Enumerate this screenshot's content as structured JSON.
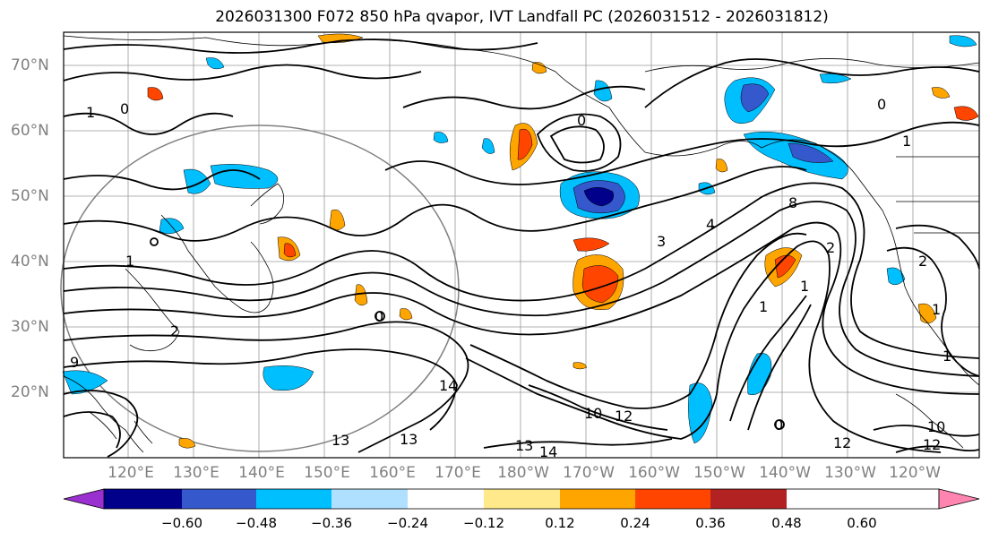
{
  "title": "2026031300 F072 850 hPa qvapor, IVT Landfall PC (2026031512 - 2026031812)",
  "lon_labels": [
    "120°E",
    "130°E",
    "140°E",
    "150°E",
    "160°E",
    "170°E",
    "180°W",
    "170°W",
    "160°W",
    "150°W",
    "140°W",
    "130°W",
    "120°W"
  ],
  "lat_labels": [
    "70°N",
    "60°N",
    "50°N",
    "40°N",
    "30°N",
    "20°N"
  ],
  "colorbar": {
    "ticks": [
      "−0.60",
      "−0.48",
      "−0.36",
      "−0.24",
      "−0.12",
      "0.12",
      "0.24",
      "0.36",
      "0.48",
      "0.60"
    ],
    "colors": [
      "#9b30d0",
      "#00008b",
      "#3558cc",
      "#00bfff",
      "#b0e0ff",
      "#ffffff",
      "#ffe98a",
      "#ffa500",
      "#ff4500",
      "#b22222",
      "#ff85b0"
    ],
    "extend": "both"
  },
  "contour_labels": [
    "1",
    "0",
    "1",
    "0",
    "1",
    "0",
    "1",
    "3",
    "4",
    "2",
    "2",
    "1",
    "1",
    "2",
    "1",
    "14",
    "10",
    "12",
    "13",
    "13",
    "14",
    "13",
    "12",
    "12",
    "10",
    "9",
    "8",
    "0",
    "0"
  ],
  "palette": {
    "background": "#ffffff",
    "contour": "#000000",
    "coast": "#000000",
    "grid": "#808080",
    "circle": "#808080"
  }
}
